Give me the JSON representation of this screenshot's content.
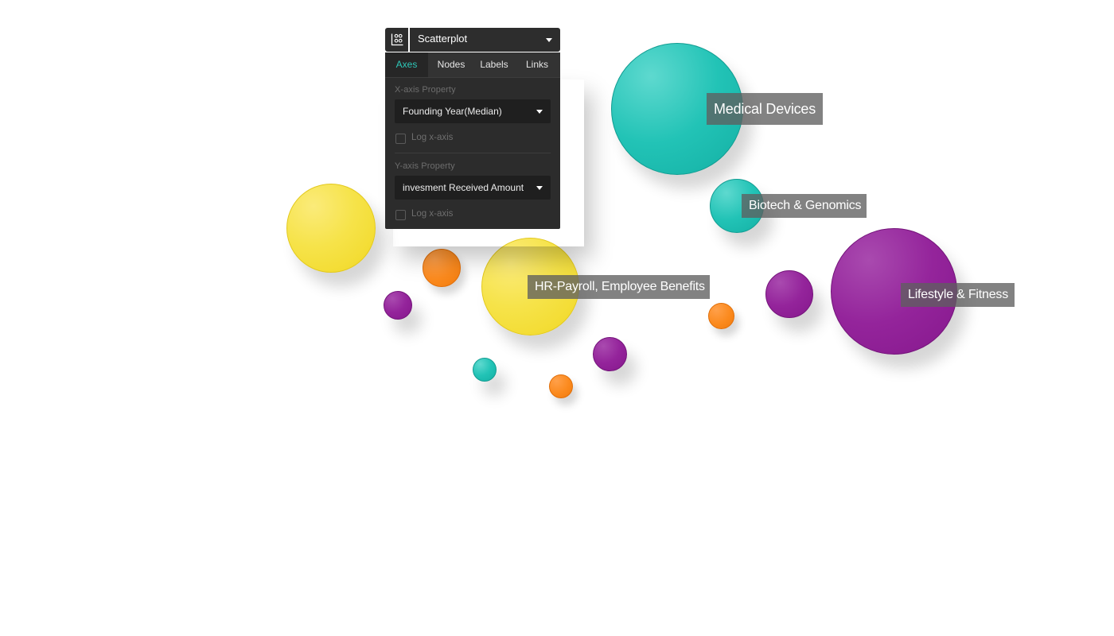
{
  "toolbar": {
    "view_icon": "scatter-layout-icon",
    "view_type": "Scatterplot",
    "dropdown_icon": "chevron-down-icon"
  },
  "tabs": [
    {
      "label": "Axes",
      "active": true
    },
    {
      "label": "Nodes",
      "active": false
    },
    {
      "label": "Labels",
      "active": false
    },
    {
      "label": "Links",
      "active": false
    }
  ],
  "axes": {
    "x_label": "X-axis Property",
    "x_value": "Founding Year(Median)",
    "x_log_label": "Log x-axis",
    "x_log_checked": false,
    "y_label": "Y-axis Property",
    "y_value": "invesment Received Amount",
    "y_log_label": "Log x-axis",
    "y_log_checked": false
  },
  "colors": {
    "accent": "#2ec7b8",
    "panel_bg": "#2c2c2c",
    "yellow": "#f4df3c",
    "teal": "#1fbcb0",
    "purple": "#8f1f96",
    "orange": "#f7851a"
  },
  "labels": {
    "medical": "Medical Devices",
    "biotech": "Biotech & Genomics",
    "hr": "HR-Payroll, Employee Benefits",
    "lifestyle": "Lifestyle & Fitness"
  }
}
